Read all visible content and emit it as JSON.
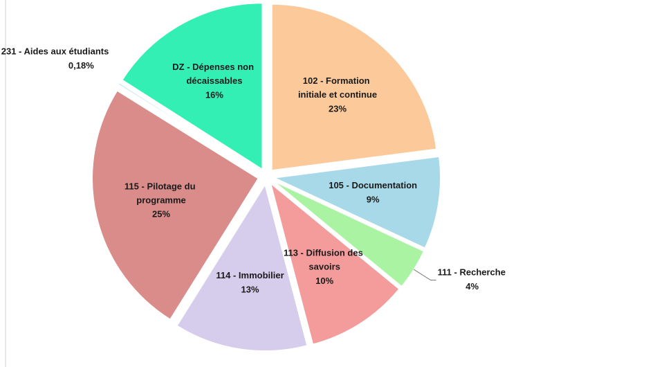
{
  "chart_data": {
    "type": "pie",
    "categories": [
      "102 - Formation initiale et continue",
      "105 - Documentation",
      "111 - Recherche",
      "113 - Diffusion des savoirs",
      "114 - Immobilier",
      "115 - Pilotage du programme",
      "231 - Aides aux étudiants",
      "DZ - Dépenses non décaissables"
    ],
    "values": [
      23,
      9,
      4,
      10,
      13,
      25,
      0.18,
      16
    ],
    "value_labels": [
      "23%",
      "9%",
      "4%",
      "10%",
      "13%",
      "25%",
      "0,18%",
      "16%"
    ],
    "colors": [
      "#fbc99a",
      "#a8d9e8",
      "#a9f3a3",
      "#f49c9c",
      "#d6cceb",
      "#d98c8a",
      "#c2e7f1",
      "#33efb3"
    ]
  }
}
